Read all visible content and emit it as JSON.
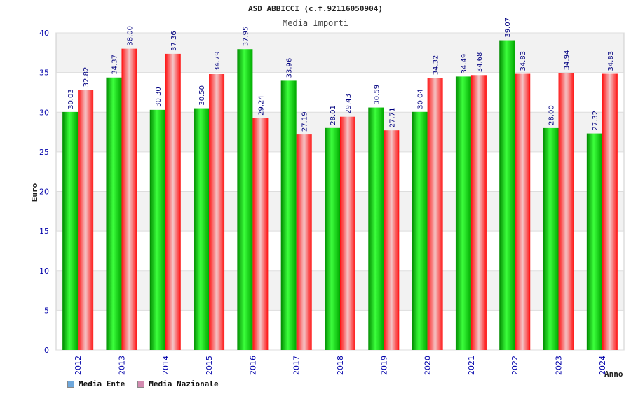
{
  "chart_data": {
    "type": "bar",
    "title": "ASD ABBICCI (c.f.92116050904)",
    "subtitle": "Media Importi",
    "ylabel": "Euro",
    "xlabel": "Anno",
    "ylim": [
      0,
      40
    ],
    "yticks": [
      0,
      5,
      10,
      15,
      20,
      25,
      30,
      35,
      40
    ],
    "grid": true,
    "legend_position": "bottom-left",
    "categories": [
      "2012",
      "2013",
      "2014",
      "2015",
      "2016",
      "2017",
      "2018",
      "2019",
      "2020",
      "2021",
      "2022",
      "2023",
      "2024"
    ],
    "series": [
      {
        "name": "Media Ente",
        "color": "#00c000",
        "legend_color": "#6fa8dc",
        "values": [
          30.03,
          34.37,
          30.3,
          30.5,
          37.95,
          33.96,
          28.01,
          30.59,
          30.04,
          34.49,
          39.07,
          28.0,
          27.32
        ]
      },
      {
        "name": "Media Nazionale",
        "color": "#e8202a",
        "legend_color": "#d38bb0",
        "values": [
          32.82,
          38.0,
          37.36,
          34.79,
          29.24,
          27.19,
          29.43,
          27.71,
          34.32,
          34.68,
          34.83,
          34.94,
          34.83
        ]
      }
    ],
    "data_labels": [
      [
        "30.03",
        "34.37",
        "30.30",
        "30.50",
        "37.95",
        "33.96",
        "28.01",
        "30.59",
        "30.04",
        "34.49",
        "39.07",
        "28.00",
        "27.32"
      ],
      [
        "32.82",
        "38.00",
        "37.36",
        "34.79",
        "29.24",
        "27.19",
        "29.43",
        "27.71",
        "34.32",
        "34.68",
        "34.83",
        "34.94",
        "34.83"
      ]
    ]
  }
}
